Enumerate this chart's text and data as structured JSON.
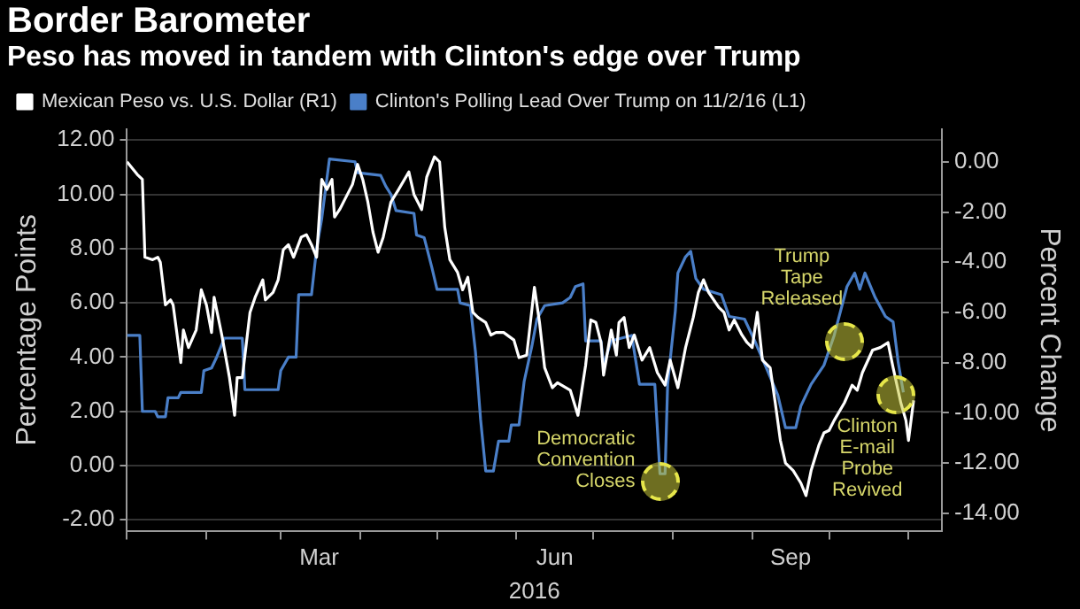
{
  "chart_data": {
    "type": "line",
    "title": "Border Barometer",
    "subtitle": "Peso has moved in tandem with Clinton's edge over Trump",
    "xlabel": "2016",
    "ylabel": "Percentage Points",
    "y2label": "Percent Change",
    "legend": "top left",
    "grid": "y",
    "xlim": [
      "2016-01-01",
      "2016-11-14"
    ],
    "xticks": [
      {
        "value": "2016-01-01",
        "label": null
      },
      {
        "value": "2016-02-01",
        "label": null
      },
      {
        "value": "2016-03-01",
        "label": null
      },
      {
        "value": "2016-03-16",
        "label": "Mar"
      },
      {
        "value": "2016-04-01",
        "label": null
      },
      {
        "value": "2016-05-01",
        "label": null
      },
      {
        "value": "2016-06-01",
        "label": null
      },
      {
        "value": "2016-06-16",
        "label": "Jun"
      },
      {
        "value": "2016-07-01",
        "label": null
      },
      {
        "value": "2016-08-01",
        "label": null
      },
      {
        "value": "2016-09-01",
        "label": null
      },
      {
        "value": "2016-09-16",
        "label": "Sep"
      },
      {
        "value": "2016-10-01",
        "label": null
      },
      {
        "value": "2016-11-01",
        "label": null
      }
    ],
    "ylim": [
      -2.4,
      12.4
    ],
    "yticks": [
      {
        "value": -2,
        "label": "-2.00"
      },
      {
        "value": 0,
        "label": "0.00"
      },
      {
        "value": 2,
        "label": "2.00"
      },
      {
        "value": 4,
        "label": "4.00"
      },
      {
        "value": 6,
        "label": "6.00"
      },
      {
        "value": 8,
        "label": "8.00"
      },
      {
        "value": 10,
        "label": "10.00"
      },
      {
        "value": 12,
        "label": "12.00"
      }
    ],
    "y2lim": [
      -14.7,
      1.3
    ],
    "y2ticks": [
      {
        "value": -14,
        "label": "-14.00"
      },
      {
        "value": -12,
        "label": "-12.00"
      },
      {
        "value": -10,
        "label": "-10.00"
      },
      {
        "value": -8,
        "label": "-8.00"
      },
      {
        "value": -6,
        "label": "-6.00"
      },
      {
        "value": -4,
        "label": "-4.00"
      },
      {
        "value": -2,
        "label": "-2.00"
      },
      {
        "value": 0,
        "label": "0.00"
      }
    ],
    "series": [
      {
        "name": "Mexican Peso vs. U.S. Dollar (R1)",
        "color": "#ffffff",
        "axis": "y2",
        "x": [
          "2016-01-01",
          "2016-01-05",
          "2016-01-07",
          "2016-01-08",
          "2016-01-11",
          "2016-01-13",
          "2016-01-14",
          "2016-01-16",
          "2016-01-18",
          "2016-01-19",
          "2016-01-22",
          "2016-01-23",
          "2016-01-25",
          "2016-01-28",
          "2016-01-30",
          "2016-02-01",
          "2016-02-03",
          "2016-02-04",
          "2016-02-07",
          "2016-02-10",
          "2016-02-12",
          "2016-02-13",
          "2016-02-15",
          "2016-02-18",
          "2016-02-20",
          "2016-02-23",
          "2016-02-24",
          "2016-02-27",
          "2016-02-29",
          "2016-03-02",
          "2016-03-04",
          "2016-03-06",
          "2016-03-09",
          "2016-03-11",
          "2016-03-13",
          "2016-03-15",
          "2016-03-17",
          "2016-03-19",
          "2016-03-21",
          "2016-03-22",
          "2016-03-24",
          "2016-03-26",
          "2016-03-29",
          "2016-03-31",
          "2016-04-02",
          "2016-04-04",
          "2016-04-06",
          "2016-04-08",
          "2016-04-10",
          "2016-04-13",
          "2016-04-16",
          "2016-04-20",
          "2016-04-22",
          "2016-04-25",
          "2016-04-27",
          "2016-04-30",
          "2016-05-02",
          "2016-05-04",
          "2016-05-06",
          "2016-05-09",
          "2016-05-11",
          "2016-05-13",
          "2016-05-15",
          "2016-05-17",
          "2016-05-20",
          "2016-05-22",
          "2016-05-24",
          "2016-05-27",
          "2016-05-31",
          "2016-06-02",
          "2016-06-05",
          "2016-06-08",
          "2016-06-10",
          "2016-06-12",
          "2016-06-15",
          "2016-06-17",
          "2016-06-22",
          "2016-06-25",
          "2016-06-28",
          "2016-06-30",
          "2016-07-02",
          "2016-07-04",
          "2016-07-05",
          "2016-07-08",
          "2016-07-10",
          "2016-07-11",
          "2016-07-13",
          "2016-07-15",
          "2016-07-17",
          "2016-07-20",
          "2016-07-23",
          "2016-07-26",
          "2016-07-29",
          "2016-07-31",
          "2016-08-03",
          "2016-08-06",
          "2016-08-09",
          "2016-08-11",
          "2016-08-13",
          "2016-08-15",
          "2016-08-19",
          "2016-08-21",
          "2016-08-23",
          "2016-08-25",
          "2016-08-28",
          "2016-08-30",
          "2016-09-01",
          "2016-09-03",
          "2016-09-05",
          "2016-09-08",
          "2016-09-10",
          "2016-09-12",
          "2016-09-14",
          "2016-09-17",
          "2016-09-20",
          "2016-09-22",
          "2016-09-24",
          "2016-09-27",
          "2016-09-29",
          "2016-10-01",
          "2016-10-03",
          "2016-10-07",
          "2016-10-10",
          "2016-10-12",
          "2016-10-14",
          "2016-10-18",
          "2016-10-21",
          "2016-10-24",
          "2016-10-26",
          "2016-10-29",
          "2016-10-31",
          "2016-11-01",
          "2016-11-03"
        ],
        "values": [
          0.0,
          -0.5,
          -0.7,
          -3.8,
          -3.9,
          -3.8,
          -4.0,
          -5.7,
          -5.5,
          -5.7,
          -8.0,
          -6.7,
          -7.4,
          -6.7,
          -5.1,
          -5.7,
          -6.8,
          -5.4,
          -6.9,
          -8.6,
          -10.1,
          -8.6,
          -8.6,
          -6.0,
          -5.4,
          -4.7,
          -5.5,
          -5.2,
          -4.7,
          -3.5,
          -3.3,
          -3.8,
          -3.0,
          -2.9,
          -3.3,
          -3.8,
          -0.7,
          -1.1,
          -0.7,
          -2.2,
          -1.9,
          -1.5,
          -0.9,
          -0.1,
          -0.7,
          -1.6,
          -2.8,
          -3.6,
          -3.0,
          -1.6,
          -1.1,
          -0.4,
          -1.3,
          -1.9,
          -0.6,
          0.2,
          0.0,
          -2.6,
          -3.9,
          -4.4,
          -5.1,
          -4.6,
          -6.0,
          -6.2,
          -6.4,
          -6.9,
          -6.8,
          -6.8,
          -7.1,
          -7.8,
          -7.7,
          -5.0,
          -6.4,
          -8.2,
          -9.0,
          -8.8,
          -9.1,
          -10.1,
          -8.1,
          -6.3,
          -6.4,
          -7.2,
          -8.5,
          -6.7,
          -7.7,
          -6.4,
          -6.2,
          -7.4,
          -6.9,
          -7.9,
          -7.4,
          -8.4,
          -8.9,
          -7.9,
          -9.0,
          -7.4,
          -6.2,
          -5.2,
          -4.7,
          -5.2,
          -5.8,
          -6.0,
          -6.7,
          -6.3,
          -6.9,
          -7.2,
          -7.4,
          -6.0,
          -7.9,
          -8.2,
          -9.6,
          -11.1,
          -12.0,
          -12.3,
          -12.8,
          -13.3,
          -12.3,
          -11.3,
          -10.8,
          -10.7,
          -10.3,
          -9.6,
          -8.9,
          -9.1,
          -8.4,
          -7.5,
          -7.4,
          -7.2,
          -8.2,
          -9.6,
          -10.3,
          -11.1,
          -9.5
        ]
      },
      {
        "name": "Clinton's Polling Lead Over Trump on 11/2/16 (L1)",
        "color": "#4a7fc8",
        "x": [
          "2016-01-01",
          "2016-01-06",
          "2016-01-07",
          "2016-01-12",
          "2016-01-13",
          "2016-01-16",
          "2016-01-17",
          "2016-01-21",
          "2016-01-22",
          "2016-01-30",
          "2016-01-31",
          "2016-02-03",
          "2016-02-05",
          "2016-02-08",
          "2016-02-15",
          "2016-02-16",
          "2016-02-29",
          "2016-03-01",
          "2016-03-04",
          "2016-03-07",
          "2016-03-08",
          "2016-03-13",
          "2016-03-15",
          "2016-03-17",
          "2016-03-20",
          "2016-03-30",
          "2016-03-31",
          "2016-04-09",
          "2016-04-11",
          "2016-04-13",
          "2016-04-15",
          "2016-04-22",
          "2016-04-23",
          "2016-04-26",
          "2016-04-29",
          "2016-05-01",
          "2016-05-09",
          "2016-05-10",
          "2016-05-14",
          "2016-05-16",
          "2016-05-18",
          "2016-05-20",
          "2016-05-23",
          "2016-05-25",
          "2016-05-29",
          "2016-05-30",
          "2016-06-02",
          "2016-06-04",
          "2016-06-07",
          "2016-06-09",
          "2016-06-12",
          "2016-06-19",
          "2016-06-22",
          "2016-06-24",
          "2016-06-27",
          "2016-06-28",
          "2016-07-04",
          "2016-07-05",
          "2016-07-08",
          "2016-07-16",
          "2016-07-19",
          "2016-07-25",
          "2016-07-27",
          "2016-07-29",
          "2016-07-30",
          "2016-08-02",
          "2016-08-03",
          "2016-08-06",
          "2016-08-08",
          "2016-08-10",
          "2016-08-13",
          "2016-08-20",
          "2016-08-23",
          "2016-08-29",
          "2016-09-02",
          "2016-09-07",
          "2016-09-11",
          "2016-09-14",
          "2016-09-18",
          "2016-09-20",
          "2016-09-24",
          "2016-09-29",
          "2016-10-03",
          "2016-10-08",
          "2016-10-11",
          "2016-10-13",
          "2016-10-15",
          "2016-10-19",
          "2016-10-23",
          "2016-10-26",
          "2016-10-28",
          "2016-10-30"
        ],
        "values": [
          4.8,
          4.8,
          2.0,
          2.0,
          1.8,
          1.8,
          2.5,
          2.5,
          2.7,
          2.7,
          3.5,
          3.6,
          4.0,
          4.7,
          4.7,
          2.8,
          2.8,
          3.5,
          4.0,
          4.0,
          6.3,
          6.3,
          8.0,
          9.1,
          11.3,
          11.2,
          10.8,
          10.7,
          10.3,
          10.0,
          9.4,
          9.3,
          8.5,
          8.4,
          7.3,
          6.5,
          6.5,
          6.0,
          5.9,
          4.2,
          1.7,
          -0.2,
          -0.2,
          0.9,
          0.9,
          1.5,
          1.5,
          3.1,
          4.4,
          5.4,
          5.9,
          6.0,
          6.2,
          6.6,
          6.7,
          4.6,
          4.6,
          3.7,
          4.6,
          4.8,
          3.0,
          3.0,
          -0.3,
          -0.3,
          3.0,
          5.7,
          7.1,
          7.7,
          7.9,
          6.9,
          6.5,
          6.3,
          5.5,
          5.4,
          4.6,
          3.5,
          2.6,
          1.4,
          1.4,
          2.2,
          3.0,
          3.7,
          4.8,
          6.6,
          7.1,
          6.5,
          7.1,
          6.2,
          5.5,
          5.3,
          3.8,
          2.7
        ]
      }
    ],
    "annotations": [
      {
        "text": "Democratic Convention Closes",
        "x": "2016-07-27",
        "y": -0.6
      },
      {
        "text": "Trump Tape Released",
        "x": "2016-10-07",
        "y": 4.6
      },
      {
        "text": "Clinton E-mail Probe Revived",
        "x": "2016-10-27",
        "y": 2.6
      }
    ]
  }
}
